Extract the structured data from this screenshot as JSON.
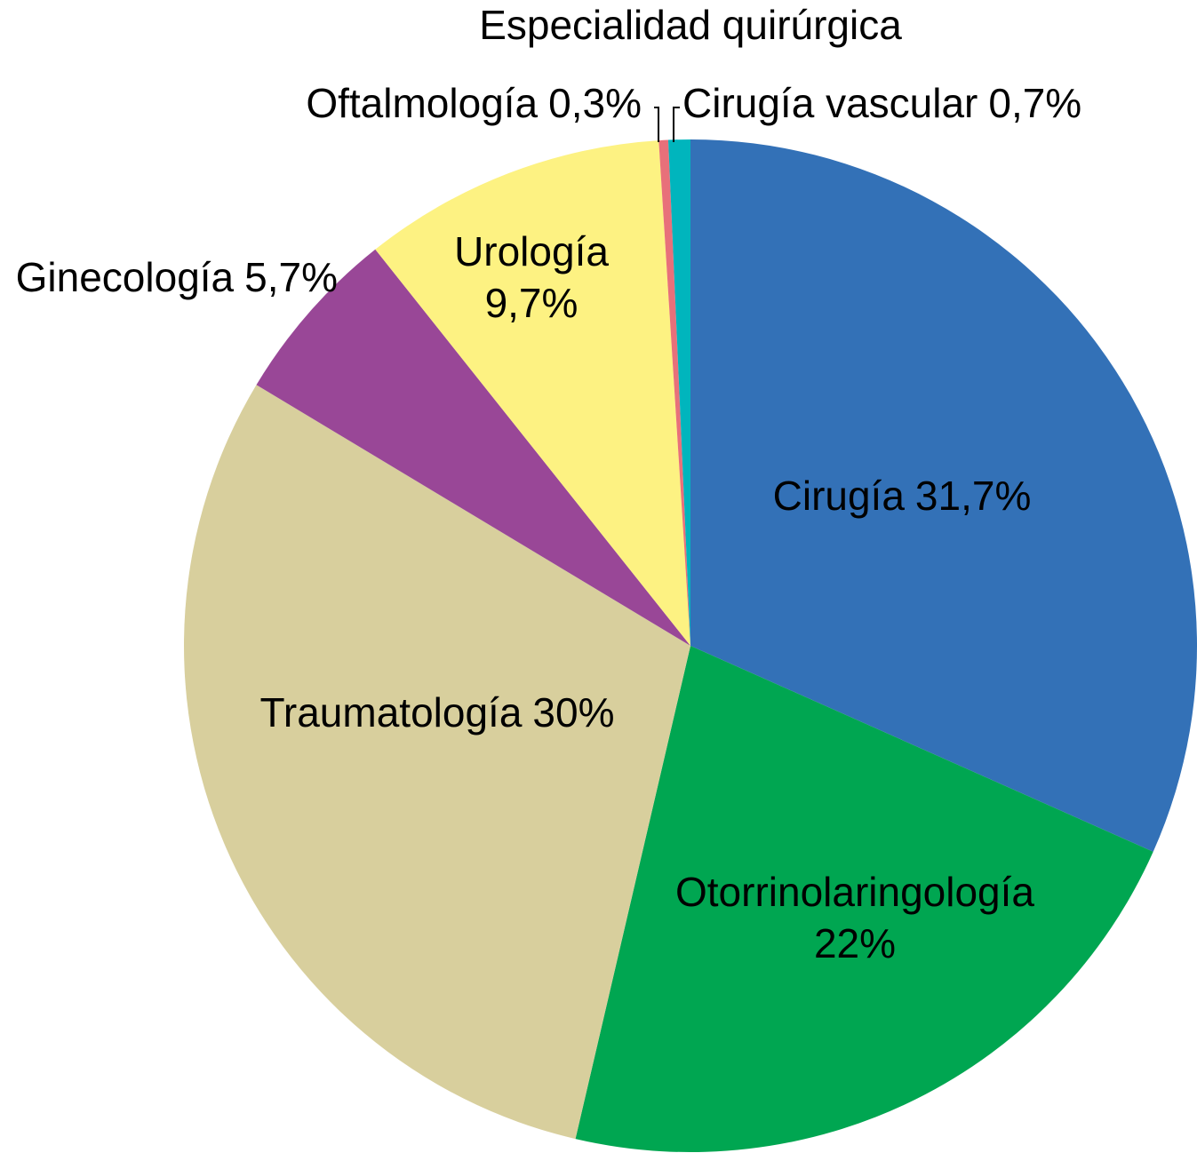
{
  "chart_data": {
    "type": "pie",
    "title": "Especialidad quirúrgica",
    "categories": [
      "Cirugía",
      "Otorrinolaringología",
      "Traumatología",
      "Ginecología",
      "Urología",
      "Oftalmología",
      "Cirugía vascular"
    ],
    "values": [
      31.7,
      22,
      30,
      5.7,
      9.7,
      0.3,
      0.7
    ],
    "value_labels": [
      "31,7%",
      "22%",
      "30%",
      "5,7%",
      "9,7%",
      "0,3%",
      "0,7%"
    ],
    "colors": [
      "#3371b7",
      "#00a651",
      "#d8cf9d",
      "#994797",
      "#fdf282",
      "#e8707a",
      "#00b5bd"
    ]
  }
}
